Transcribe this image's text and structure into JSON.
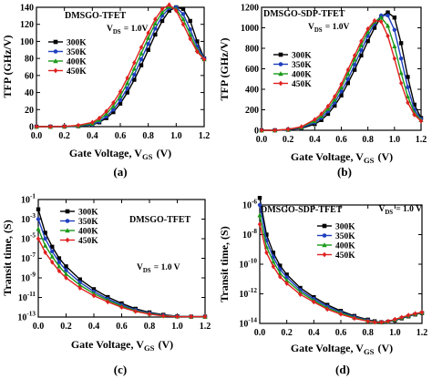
{
  "chart_data": [
    {
      "type": "line",
      "panel_label": "(a)",
      "title": "DMSGO-TFET",
      "annotation": "V_DS = 1.0V",
      "xlabel": "Gate Voltage, V_GS (V)",
      "ylabel": "TFP (GHz/V)",
      "xlim": [
        0.0,
        1.2
      ],
      "ylim": [
        0,
        140
      ],
      "xticks": [
        "0.0",
        "0.2",
        "0.4",
        "0.6",
        "0.8",
        "1.0",
        "1.2"
      ],
      "yticks": [
        "0",
        "20",
        "40",
        "60",
        "80",
        "100",
        "120",
        "140"
      ],
      "yscale": "linear",
      "legend_position": "upper-left",
      "series": [
        {
          "name": "300K",
          "color": "#000000",
          "marker": "square",
          "x": [
            0.0,
            0.1,
            0.2,
            0.3,
            0.4,
            0.45,
            0.5,
            0.55,
            0.6,
            0.65,
            0.7,
            0.75,
            0.8,
            0.85,
            0.9,
            0.95,
            1.0,
            1.05,
            1.1,
            1.15,
            1.2
          ],
          "y": [
            0,
            0,
            0,
            0.5,
            2,
            5,
            10,
            17,
            27,
            40,
            55,
            72,
            90,
            108,
            124,
            136,
            140,
            138,
            124,
            100,
            80
          ]
        },
        {
          "name": "350K",
          "color": "#1f3fbf",
          "marker": "circle",
          "x": [
            0.0,
            0.1,
            0.2,
            0.3,
            0.4,
            0.45,
            0.5,
            0.55,
            0.6,
            0.65,
            0.7,
            0.75,
            0.8,
            0.85,
            0.9,
            0.95,
            1.0,
            1.05,
            1.1,
            1.15,
            1.2
          ],
          "y": [
            0,
            0,
            0,
            0.7,
            2.5,
            6,
            12,
            20,
            31,
            45,
            61,
            79,
            97,
            115,
            130,
            139,
            140,
            132,
            114,
            94,
            80
          ]
        },
        {
          "name": "400K",
          "color": "#1a9a1a",
          "marker": "triangle",
          "x": [
            0.0,
            0.1,
            0.2,
            0.3,
            0.4,
            0.45,
            0.5,
            0.55,
            0.6,
            0.65,
            0.7,
            0.75,
            0.8,
            0.85,
            0.9,
            0.95,
            1.0,
            1.05,
            1.1,
            1.15,
            1.2
          ],
          "y": [
            0,
            0,
            0.2,
            1,
            3.5,
            8,
            15,
            24,
            36,
            51,
            68,
            86,
            104,
            121,
            134,
            141,
            138,
            126,
            108,
            90,
            79
          ]
        },
        {
          "name": "450K",
          "color": "#e02020",
          "marker": "diamond",
          "x": [
            0.0,
            0.1,
            0.2,
            0.3,
            0.4,
            0.45,
            0.5,
            0.55,
            0.6,
            0.65,
            0.7,
            0.75,
            0.8,
            0.85,
            0.9,
            0.95,
            1.0,
            1.05,
            1.1,
            1.15,
            1.2
          ],
          "y": [
            0,
            0,
            0.3,
            1.5,
            5,
            10,
            18,
            28,
            41,
            57,
            75,
            93,
            110,
            126,
            138,
            143,
            136,
            120,
            103,
            88,
            79
          ]
        }
      ]
    },
    {
      "type": "line",
      "panel_label": "(b)",
      "title": "DMSGO-SDP-TFET",
      "annotation": "V_DS = 1.0V",
      "xlabel": "Gate Voltage, V_GS (V)",
      "ylabel": "TFP (GHz/V)",
      "xlim": [
        0.0,
        1.2
      ],
      "ylim": [
        0,
        1200
      ],
      "xticks": [
        "0.0",
        "0.2",
        "0.4",
        "0.6",
        "0.8",
        "1.0",
        "1.2"
      ],
      "yticks": [
        "0",
        "200",
        "400",
        "600",
        "800",
        "1000",
        "1200"
      ],
      "yscale": "linear",
      "legend_position": "right",
      "series": [
        {
          "name": "300K",
          "color": "#000000",
          "marker": "square",
          "x": [
            0.0,
            0.1,
            0.2,
            0.3,
            0.4,
            0.45,
            0.5,
            0.55,
            0.6,
            0.65,
            0.7,
            0.75,
            0.8,
            0.85,
            0.9,
            0.95,
            1.0,
            1.05,
            1.1,
            1.15,
            1.2
          ],
          "y": [
            0,
            0,
            5,
            20,
            60,
            100,
            160,
            240,
            340,
            460,
            590,
            730,
            870,
            1000,
            1110,
            1150,
            1100,
            850,
            520,
            250,
            120
          ]
        },
        {
          "name": "350K",
          "color": "#1f3fbf",
          "marker": "circle",
          "x": [
            0.0,
            0.1,
            0.2,
            0.3,
            0.4,
            0.45,
            0.5,
            0.55,
            0.6,
            0.65,
            0.7,
            0.75,
            0.8,
            0.85,
            0.9,
            0.95,
            1.0,
            1.05,
            1.1,
            1.15,
            1.2
          ],
          "y": [
            0,
            0,
            6,
            25,
            75,
            120,
            185,
            270,
            380,
            500,
            640,
            780,
            920,
            1040,
            1120,
            1120,
            980,
            700,
            420,
            200,
            110
          ]
        },
        {
          "name": "400K",
          "color": "#1a9a1a",
          "marker": "triangle",
          "x": [
            0.0,
            0.1,
            0.2,
            0.3,
            0.4,
            0.45,
            0.5,
            0.55,
            0.6,
            0.65,
            0.7,
            0.75,
            0.8,
            0.85,
            0.9,
            0.95,
            1.0,
            1.05,
            1.1,
            1.15,
            1.2
          ],
          "y": [
            0,
            0,
            8,
            30,
            90,
            140,
            210,
            300,
            420,
            550,
            690,
            830,
            960,
            1060,
            1100,
            1020,
            820,
            560,
            330,
            170,
            100
          ]
        },
        {
          "name": "450K",
          "color": "#e02020",
          "marker": "diamond",
          "x": [
            0.0,
            0.1,
            0.2,
            0.3,
            0.4,
            0.45,
            0.5,
            0.55,
            0.6,
            0.65,
            0.7,
            0.75,
            0.8,
            0.85,
            0.9,
            0.95,
            1.0,
            1.05,
            1.1,
            1.15,
            1.2
          ],
          "y": [
            0,
            0,
            10,
            35,
            105,
            160,
            235,
            330,
            450,
            590,
            730,
            870,
            990,
            1070,
            1060,
            920,
            700,
            460,
            270,
            150,
            90
          ]
        }
      ]
    },
    {
      "type": "line",
      "panel_label": "(c)",
      "title": "DMSGO-TFET",
      "annotation": "V_DS = 1.0 V",
      "xlabel": "Gate Voltage, V_GS (V)",
      "ylabel": "Transit time, (S)",
      "xlim": [
        0.0,
        1.2
      ],
      "ylim": [
        1e-13,
        0.1
      ],
      "xticks": [
        "0.0",
        "0.2",
        "0.4",
        "0.6",
        "0.8",
        "1.0",
        "1.2"
      ],
      "yticks": [
        "10^-13",
        "10^-11",
        "10^-9",
        "10^-7",
        "10^-5",
        "10^-3",
        "10^-1"
      ],
      "yscale": "log",
      "legend_position": "upper-left",
      "series": [
        {
          "name": "300K",
          "color": "#000000",
          "marker": "square",
          "x": [
            0.0,
            0.05,
            0.1,
            0.15,
            0.2,
            0.3,
            0.4,
            0.5,
            0.6,
            0.7,
            0.8,
            0.9,
            1.0,
            1.1,
            1.2
          ],
          "y": [
            0.01,
            4e-05,
            1.5e-06,
            1e-07,
            1.5e-08,
            7e-10,
            7e-11,
            1.1e-11,
            2.5e-12,
            7e-13,
            3e-13,
            1.7e-13,
            1.2e-13,
            1.1e-13,
            1.1e-13
          ]
        },
        {
          "name": "350K",
          "color": "#1f3fbf",
          "marker": "circle",
          "x": [
            0.0,
            0.05,
            0.1,
            0.15,
            0.2,
            0.3,
            0.4,
            0.5,
            0.6,
            0.7,
            0.8,
            0.9,
            1.0,
            1.1,
            1.2
          ],
          "y": [
            0.001,
            1e-05,
            5e-07,
            4e-08,
            6e-09,
            3.5e-10,
            4e-11,
            7e-12,
            1.7e-12,
            5.5e-13,
            2.5e-13,
            1.5e-13,
            1.2e-13,
            1.1e-13,
            1.1e-13
          ]
        },
        {
          "name": "400K",
          "color": "#1a9a1a",
          "marker": "triangle",
          "x": [
            0.0,
            0.05,
            0.1,
            0.15,
            0.2,
            0.3,
            0.4,
            0.5,
            0.6,
            0.7,
            0.8,
            0.9,
            1.0,
            1.1,
            1.2
          ],
          "y": [
            0.0001,
            2e-06,
            1.5e-07,
            1.5e-08,
            2.5e-09,
            1.8e-10,
            2.5e-11,
            5e-12,
            1.3e-12,
            4.5e-13,
            2.2e-13,
            1.4e-13,
            1.15e-13,
            1.1e-13,
            1.1e-13
          ]
        },
        {
          "name": "450K",
          "color": "#e02020",
          "marker": "diamond",
          "x": [
            0.0,
            0.05,
            0.1,
            0.15,
            0.2,
            0.3,
            0.4,
            0.5,
            0.6,
            0.7,
            0.8,
            0.9,
            1.0,
            1.1,
            1.2
          ],
          "y": [
            1e-05,
            4e-07,
            4e-08,
            5e-09,
            1e-09,
            9e-11,
            1.5e-11,
            3.5e-12,
            1e-12,
            3.8e-13,
            2e-13,
            1.3e-13,
            1.1e-13,
            1.1e-13,
            1.1e-13
          ]
        }
      ]
    },
    {
      "type": "line",
      "panel_label": "(d)",
      "title": "DMSGO-SDP-TFET",
      "annotation": "V_DS = 1.0 V",
      "xlabel": "Gate Voltage, V_GS (V)",
      "ylabel": "Transit time, (S)",
      "xlim": [
        0.0,
        1.2
      ],
      "ylim": [
        1e-14,
        1e-06
      ],
      "xticks": [
        "0.0",
        "0.2",
        "0.4",
        "0.6",
        "0.8",
        "1.0",
        "1.2"
      ],
      "yticks": [
        "10^-14",
        "10^-12",
        "10^-10",
        "10^-8",
        "10^-6"
      ],
      "yscale": "log",
      "legend_position": "upper-right",
      "series": [
        {
          "name": "300K",
          "color": "#000000",
          "marker": "square",
          "x": [
            0.0,
            0.05,
            0.1,
            0.15,
            0.2,
            0.3,
            0.4,
            0.5,
            0.6,
            0.7,
            0.8,
            0.85,
            0.9,
            0.95,
            1.0,
            1.05,
            1.1,
            1.15,
            1.2
          ],
          "y": [
            3e-06,
            1e-08,
            6e-10,
            8e-11,
            2e-11,
            2.5e-12,
            6e-13,
            1.8e-13,
            7e-14,
            3.2e-14,
            1.8e-14,
            1.4e-14,
            1.2e-14,
            1.3e-14,
            1.6e-14,
            2.2e-14,
            3e-14,
            4e-14,
            5e-14
          ]
        },
        {
          "name": "350K",
          "color": "#1f3fbf",
          "marker": "circle",
          "x": [
            0.0,
            0.05,
            0.1,
            0.15,
            0.2,
            0.3,
            0.4,
            0.5,
            0.6,
            0.7,
            0.8,
            0.85,
            0.9,
            0.95,
            1.0,
            1.05,
            1.1,
            1.15,
            1.2
          ],
          "y": [
            1e-06,
            4e-09,
            3e-10,
            4.5e-11,
            1.3e-11,
            1.8e-12,
            4.5e-13,
            1.4e-13,
            5.8e-14,
            2.8e-14,
            1.6e-14,
            1.3e-14,
            1.2e-14,
            1.3e-14,
            1.7e-14,
            2.4e-14,
            3.2e-14,
            4.2e-14,
            5.2e-14
          ]
        },
        {
          "name": "400K",
          "color": "#1a9a1a",
          "marker": "triangle",
          "x": [
            0.0,
            0.05,
            0.1,
            0.15,
            0.2,
            0.3,
            0.4,
            0.5,
            0.6,
            0.7,
            0.8,
            0.85,
            0.9,
            0.95,
            1.0,
            1.05,
            1.1,
            1.15,
            1.2
          ],
          "y": [
            2e-07,
            1.5e-09,
            1.5e-10,
            2.5e-11,
            8e-12,
            1.3e-12,
            3.5e-13,
            1.1e-13,
            5e-14,
            2.5e-14,
            1.5e-14,
            1.3e-14,
            1.2e-14,
            1.4e-14,
            1.8e-14,
            2.5e-14,
            3.4e-14,
            4.4e-14,
            5.4e-14
          ]
        },
        {
          "name": "450K",
          "color": "#e02020",
          "marker": "diamond",
          "x": [
            0.0,
            0.05,
            0.1,
            0.15,
            0.2,
            0.3,
            0.4,
            0.5,
            0.6,
            0.7,
            0.8,
            0.85,
            0.9,
            0.95,
            1.0,
            1.05,
            1.1,
            1.15,
            1.2
          ],
          "y": [
            5e-08,
            6e-10,
            7e-11,
            1.4e-11,
            5e-12,
            9e-13,
            2.8e-13,
            9e-14,
            4.2e-14,
            2.2e-14,
            1.4e-14,
            1.2e-14,
            1.2e-14,
            1.4e-14,
            1.9e-14,
            2.6e-14,
            3.6e-14,
            4.6e-14,
            5.6e-14
          ]
        }
      ]
    }
  ]
}
